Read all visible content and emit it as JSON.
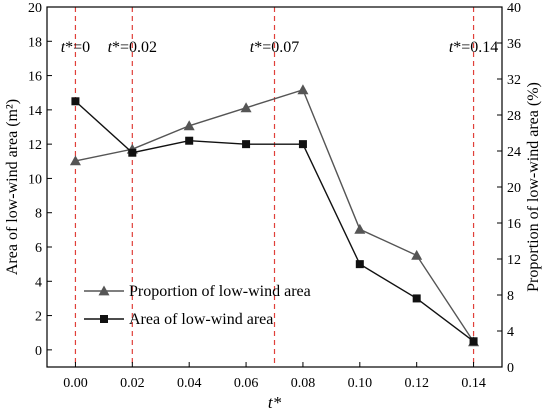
{
  "chart_data": {
    "type": "line",
    "x": [
      0.0,
      0.02,
      0.04,
      0.06,
      0.08,
      0.1,
      0.12,
      0.14
    ],
    "x_tick_labels": [
      "0.00",
      "0.02",
      "0.04",
      "0.06",
      "0.08",
      "0.10",
      "0.12",
      "0.14"
    ],
    "xlim": [
      -0.01,
      0.15
    ],
    "xlabel_prefix": "t",
    "xlabel_suffix": "*",
    "left_axis": {
      "label": "Area of low-wind area (m²)",
      "ylim": [
        -1,
        20
      ],
      "ticks": [
        0,
        2,
        4,
        6,
        8,
        10,
        12,
        14,
        16,
        18,
        20
      ]
    },
    "right_axis": {
      "label": "Proportion of low-wind area (%)",
      "ylim": [
        0,
        40
      ],
      "ticks": [
        0,
        4,
        8,
        12,
        16,
        20,
        24,
        28,
        32,
        36,
        40
      ]
    },
    "series": [
      {
        "name": "Proportion of low-wind area",
        "axis": "right",
        "marker": "triangle",
        "color": "#555555",
        "x": [
          0.0,
          0.02,
          0.04,
          0.06,
          0.08,
          0.1,
          0.12,
          0.14
        ],
        "values": [
          22.9,
          24.2,
          26.8,
          28.8,
          30.8,
          15.3,
          12.4,
          2.8
        ]
      },
      {
        "name": "Area of low-wind area",
        "axis": "left",
        "marker": "square",
        "color": "#111111",
        "x": [
          0.0,
          0.02,
          0.04,
          0.06,
          0.08,
          0.1,
          0.12,
          0.14
        ],
        "values": [
          14.5,
          11.5,
          12.2,
          12.0,
          12.0,
          5.0,
          3.0,
          0.5
        ]
      }
    ],
    "reference_lines": {
      "color": "#e0403a",
      "style": "dashed",
      "x": [
        0.0,
        0.02,
        0.07,
        0.14
      ],
      "labels": [
        "t*=0",
        "t*=0.02",
        "t*=0.07",
        "t*=0.14"
      ]
    },
    "legend_position": "lower-left",
    "grid": false
  }
}
